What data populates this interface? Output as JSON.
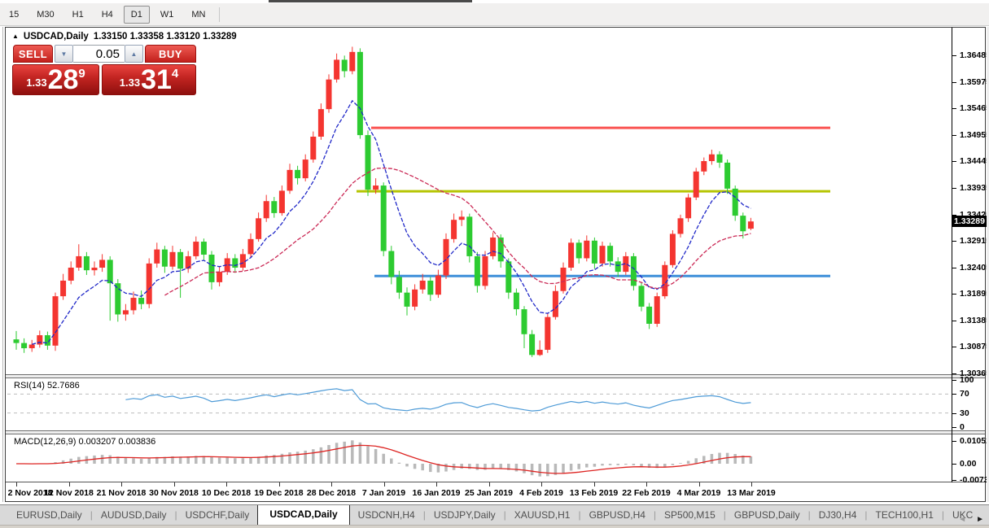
{
  "toolbar": {
    "timeframes": [
      "15",
      "M30",
      "H1",
      "H4",
      "D1",
      "W1",
      "MN"
    ],
    "active_timeframe": "D1"
  },
  "chart": {
    "header": {
      "collapse_icon": "▲",
      "symbol_label": "USDCAD,Daily",
      "ohlc_text": "1.33150 1.33358 1.33120 1.33289"
    },
    "trade_panel": {
      "sell_label": "SELL",
      "buy_label": "BUY",
      "lot_value": "0.05",
      "stepper_down_icon": "▼",
      "stepper_up_icon": "▲",
      "sell_price": {
        "prefix": "1.33",
        "big": "28",
        "sup": "9"
      },
      "buy_price": {
        "prefix": "1.33",
        "big": "31",
        "sup": "4"
      }
    },
    "price_axis": {
      "ticks": [
        "1.36485",
        "1.35975",
        "1.35465",
        "1.34955",
        "1.34445",
        "1.33935",
        "1.33425",
        "1.32915",
        "1.32405",
        "1.31895",
        "1.31385",
        "1.30875",
        "1.30365"
      ],
      "current": "1.33289"
    }
  },
  "chart_data": {
    "type": "candlestick",
    "title": "USDCAD,Daily",
    "symbol": "USDCAD",
    "timeframe": "Daily",
    "current_bar": {
      "open": 1.3315,
      "high": 1.33358,
      "low": 1.3312,
      "close": 1.33289
    },
    "bid": "1.33289",
    "ask": "1.33314",
    "y_axis_range": [
      1.30365,
      1.36485
    ],
    "grid": "off",
    "x_tick_labels": [
      "2 Nov 2018",
      "12 Nov 2018",
      "21 Nov 2018",
      "30 Nov 2018",
      "10 Dec 2018",
      "19 Dec 2018",
      "28 Dec 2018",
      "7 Jan 2019",
      "16 Jan 2019",
      "25 Jan 2019",
      "4 Feb 2019",
      "13 Feb 2019",
      "22 Feb 2019",
      "4 Mar 2019",
      "13 Mar 2019"
    ],
    "candles_ohlc": [
      [
        1.3102,
        1.3118,
        1.3082,
        1.3095
      ],
      [
        1.3095,
        1.3104,
        1.3076,
        1.3085
      ],
      [
        1.3085,
        1.3101,
        1.3078,
        1.3092
      ],
      [
        1.3092,
        1.3119,
        1.3086,
        1.311
      ],
      [
        1.311,
        1.3117,
        1.3082,
        1.309
      ],
      [
        1.309,
        1.3192,
        1.308,
        1.3185
      ],
      [
        1.3185,
        1.3228,
        1.3178,
        1.3215
      ],
      [
        1.3215,
        1.3252,
        1.3208,
        1.324
      ],
      [
        1.324,
        1.3285,
        1.3234,
        1.3262
      ],
      [
        1.3262,
        1.327,
        1.3226,
        1.3235
      ],
      [
        1.3235,
        1.3252,
        1.3225,
        1.324
      ],
      [
        1.324,
        1.3266,
        1.3232,
        1.3255
      ],
      [
        1.3255,
        1.3262,
        1.3138,
        1.321
      ],
      [
        1.321,
        1.3218,
        1.3136,
        1.315
      ],
      [
        1.315,
        1.317,
        1.3138,
        1.3158
      ],
      [
        1.3158,
        1.3194,
        1.315,
        1.3182
      ],
      [
        1.3182,
        1.3196,
        1.316,
        1.317
      ],
      [
        1.317,
        1.3258,
        1.3162,
        1.3248
      ],
      [
        1.3248,
        1.3288,
        1.324,
        1.3275
      ],
      [
        1.3275,
        1.3282,
        1.323,
        1.3242
      ],
      [
        1.3242,
        1.3282,
        1.3236,
        1.327
      ],
      [
        1.327,
        1.3276,
        1.3182,
        1.3238
      ],
      [
        1.3238,
        1.3272,
        1.323,
        1.3262
      ],
      [
        1.3262,
        1.33,
        1.3256,
        1.329
      ],
      [
        1.329,
        1.3296,
        1.3254,
        1.3265
      ],
      [
        1.3265,
        1.3272,
        1.3198,
        1.3212
      ],
      [
        1.3212,
        1.3242,
        1.3204,
        1.3232
      ],
      [
        1.3232,
        1.3268,
        1.3226,
        1.3258
      ],
      [
        1.3258,
        1.3266,
        1.323,
        1.324
      ],
      [
        1.324,
        1.3276,
        1.3234,
        1.3266
      ],
      [
        1.3266,
        1.3306,
        1.326,
        1.3295
      ],
      [
        1.3295,
        1.3346,
        1.329,
        1.3335
      ],
      [
        1.3335,
        1.338,
        1.3328,
        1.3368
      ],
      [
        1.3368,
        1.3376,
        1.3336,
        1.3345
      ],
      [
        1.3345,
        1.3398,
        1.334,
        1.3388
      ],
      [
        1.3388,
        1.344,
        1.3382,
        1.3428
      ],
      [
        1.3428,
        1.3436,
        1.34,
        1.3412
      ],
      [
        1.3412,
        1.3458,
        1.3406,
        1.3448
      ],
      [
        1.3448,
        1.3502,
        1.3442,
        1.3492
      ],
      [
        1.3492,
        1.3556,
        1.3486,
        1.3545
      ],
      [
        1.3545,
        1.3612,
        1.3538,
        1.3602
      ],
      [
        1.3602,
        1.3652,
        1.3596,
        1.364
      ],
      [
        1.364,
        1.3648,
        1.3606,
        1.3618
      ],
      [
        1.3618,
        1.3665,
        1.3612,
        1.3655
      ],
      [
        1.3655,
        1.3662,
        1.3488,
        1.3495
      ],
      [
        1.3495,
        1.3504,
        1.3378,
        1.339
      ],
      [
        1.339,
        1.3412,
        1.3382,
        1.3398
      ],
      [
        1.3398,
        1.3404,
        1.3262,
        1.3272
      ],
      [
        1.3272,
        1.3282,
        1.3208,
        1.3222
      ],
      [
        1.3222,
        1.3234,
        1.318,
        1.3192
      ],
      [
        1.3192,
        1.3202,
        1.3148,
        1.3165
      ],
      [
        1.3165,
        1.3208,
        1.3158,
        1.3198
      ],
      [
        1.3198,
        1.3228,
        1.319,
        1.3215
      ],
      [
        1.3215,
        1.3222,
        1.3176,
        1.3188
      ],
      [
        1.3188,
        1.3236,
        1.3182,
        1.3225
      ],
      [
        1.3225,
        1.3306,
        1.3218,
        1.3295
      ],
      [
        1.3295,
        1.3344,
        1.3288,
        1.3332
      ],
      [
        1.3332,
        1.335,
        1.332,
        1.3338
      ],
      [
        1.3338,
        1.3344,
        1.325,
        1.3262
      ],
      [
        1.3262,
        1.327,
        1.3192,
        1.3205
      ],
      [
        1.3205,
        1.3272,
        1.3198,
        1.3262
      ],
      [
        1.3262,
        1.3308,
        1.3256,
        1.3298
      ],
      [
        1.3298,
        1.3304,
        1.324,
        1.3252
      ],
      [
        1.3252,
        1.3258,
        1.318,
        1.3192
      ],
      [
        1.3192,
        1.32,
        1.3148,
        1.316
      ],
      [
        1.316,
        1.3166,
        1.3085,
        1.3112
      ],
      [
        1.3112,
        1.312,
        1.3068,
        1.3072
      ],
      [
        1.3072,
        1.31,
        1.307,
        1.3082
      ],
      [
        1.3082,
        1.3152,
        1.3076,
        1.3145
      ],
      [
        1.3145,
        1.3206,
        1.314,
        1.3195
      ],
      [
        1.3195,
        1.325,
        1.319,
        1.324
      ],
      [
        1.324,
        1.3296,
        1.3234,
        1.3288
      ],
      [
        1.3288,
        1.3294,
        1.3248,
        1.3258
      ],
      [
        1.3258,
        1.3302,
        1.3252,
        1.3292
      ],
      [
        1.3292,
        1.3298,
        1.3238,
        1.3248
      ],
      [
        1.3248,
        1.329,
        1.3242,
        1.3282
      ],
      [
        1.3282,
        1.3288,
        1.3242,
        1.3252
      ],
      [
        1.3252,
        1.326,
        1.3222,
        1.3232
      ],
      [
        1.3232,
        1.327,
        1.3226,
        1.3262
      ],
      [
        1.3262,
        1.3268,
        1.3196,
        1.3205
      ],
      [
        1.3205,
        1.3212,
        1.3156,
        1.3165
      ],
      [
        1.3165,
        1.3172,
        1.3122,
        1.3132
      ],
      [
        1.3132,
        1.3192,
        1.3126,
        1.3185
      ],
      [
        1.3185,
        1.3252,
        1.318,
        1.3245
      ],
      [
        1.3245,
        1.3312,
        1.324,
        1.3305
      ],
      [
        1.3305,
        1.3342,
        1.3298,
        1.3335
      ],
      [
        1.3335,
        1.3382,
        1.3328,
        1.3375
      ],
      [
        1.3375,
        1.3432,
        1.337,
        1.3425
      ],
      [
        1.3425,
        1.3452,
        1.3418,
        1.3445
      ],
      [
        1.3445,
        1.3467,
        1.3438,
        1.3458
      ],
      [
        1.3458,
        1.3464,
        1.3432,
        1.3442
      ],
      [
        1.3442,
        1.3448,
        1.3382,
        1.3392
      ],
      [
        1.3392,
        1.3398,
        1.333,
        1.334
      ],
      [
        1.334,
        1.3346,
        1.3296,
        1.331
      ],
      [
        1.3315,
        1.33358,
        1.3312,
        1.33289
      ]
    ],
    "colors": {
      "candle_up": "#f43530",
      "candle_down": "#2dcb31",
      "ma_fast": "#2028c8",
      "ma_slow": "#cb2a56",
      "rsi_line": "#4e9bd7",
      "macd_hist": "#b9b9b9",
      "macd_signal": "#dd2422"
    },
    "overlays": [
      {
        "name": "fast-ma",
        "type": "ema",
        "period": 8,
        "color": "#2028c8"
      },
      {
        "name": "slow-ma",
        "type": "sma",
        "period": 20,
        "color": "#cb2a56"
      }
    ],
    "hlines": [
      {
        "price": 1.3509,
        "color": "#fa5452"
      },
      {
        "price": 1.3387,
        "color": "#b5c400"
      },
      {
        "price": 1.3224,
        "color": "#3d8fd9"
      }
    ],
    "indicators": [
      {
        "name": "RSI",
        "params": "14",
        "label": "RSI(14) 52.7686",
        "value": 52.7686,
        "range": [
          0,
          100
        ],
        "levels": [
          70,
          30
        ],
        "scale_labels": [
          "100",
          "70",
          "30",
          "0"
        ]
      },
      {
        "name": "MACD",
        "params": "12,26,9",
        "label": "MACD(12,26,9) 0.003207 0.003836",
        "values": [
          0.003207,
          0.003836
        ],
        "scale_labels": [
          "0.010525",
          "0.00",
          "-0.0073"
        ]
      }
    ]
  },
  "tabs": {
    "items": [
      "EURUSD,Daily",
      "AUDUSD,Daily",
      "USDCHF,Daily",
      "USDCAD,Daily",
      "USDCNH,H4",
      "USDJPY,Daily",
      "XAUUSD,H1",
      "GBPUSD,H4",
      "SP500,M15",
      "GBPUSD,Daily",
      "DJ30,H4",
      "TECH100,H1",
      "UKC"
    ],
    "active": "USDCAD,Daily",
    "scroll_left_icon": "◄",
    "scroll_right_icon": "►"
  }
}
